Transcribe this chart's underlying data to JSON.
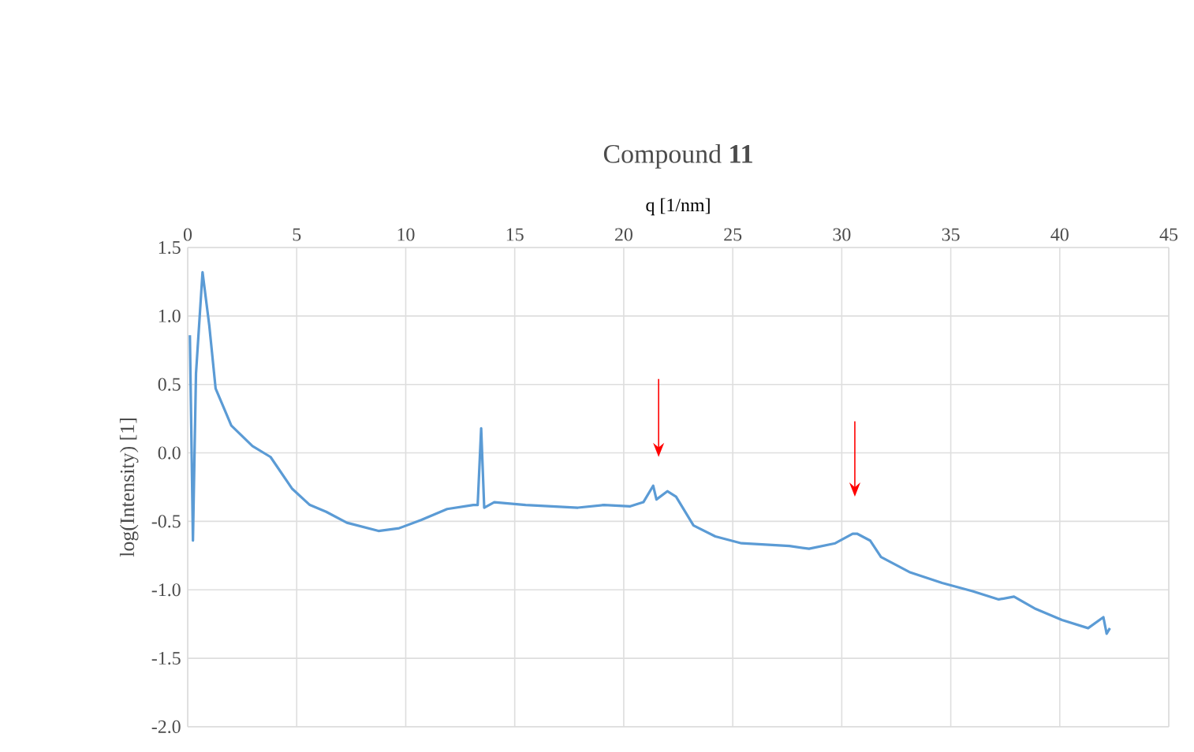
{
  "chart_data": {
    "type": "line",
    "title": "Compound **11**",
    "xlabel": "q [1/nm]",
    "ylabel": "log(Intensity) [1]",
    "xlim": [
      0,
      45
    ],
    "xticks": [
      0,
      5,
      10,
      15,
      20,
      25,
      30,
      35,
      40,
      45
    ],
    "ylim": [
      -2.0,
      1.5
    ],
    "yticks": [
      {
        "value": -2.0,
        "label": "-2.0"
      },
      {
        "value": -1.5,
        "label": "-1.5"
      },
      {
        "value": -1.0,
        "label": "-1.0"
      },
      {
        "value": -0.5,
        "label": "-0.5"
      },
      {
        "value": 0.0,
        "label": "0.0"
      },
      {
        "value": 0.5,
        "label": "0.5"
      },
      {
        "value": 1.0,
        "label": "1.0"
      },
      {
        "value": 1.5,
        "label": "1.5"
      }
    ],
    "grid": true,
    "marker": "none",
    "line_style": "solid",
    "series": [
      {
        "color": "#5b9bd5",
        "x": [
          0.1,
          0.24,
          0.38,
          0.68,
          0.99,
          1.28,
          2.0,
          2.97,
          3.8,
          4.78,
          5.6,
          6.35,
          7.3,
          8.75,
          9.7,
          10.7,
          11.9,
          13.1,
          13.3,
          13.46,
          13.6,
          14.06,
          15.5,
          17.9,
          19.1,
          20.3,
          20.9,
          21.35,
          21.5,
          22.0,
          22.4,
          23.2,
          24.2,
          25.4,
          27.6,
          28.5,
          29.7,
          30.5,
          30.7,
          31.3,
          31.8,
          33.1,
          34.6,
          36.0,
          37.2,
          37.9,
          38.9,
          40.1,
          41.3,
          42.0,
          42.15,
          42.3
        ],
        "values": [
          0.86,
          -0.64,
          0.58,
          1.32,
          0.93,
          0.47,
          0.2,
          0.05,
          -0.03,
          -0.26,
          -0.38,
          -0.43,
          -0.51,
          -0.57,
          -0.55,
          -0.49,
          -0.41,
          -0.38,
          -0.38,
          0.18,
          -0.4,
          -0.36,
          -0.38,
          -0.4,
          -0.38,
          -0.39,
          -0.36,
          -0.24,
          -0.34,
          -0.28,
          -0.32,
          -0.53,
          -0.61,
          -0.66,
          -0.68,
          -0.7,
          -0.66,
          -0.59,
          -0.59,
          -0.64,
          -0.76,
          -0.87,
          -0.95,
          -1.01,
          -1.07,
          -1.05,
          -1.14,
          -1.22,
          -1.28,
          -1.2,
          -1.32,
          -1.28
        ]
      }
    ]
  }
}
